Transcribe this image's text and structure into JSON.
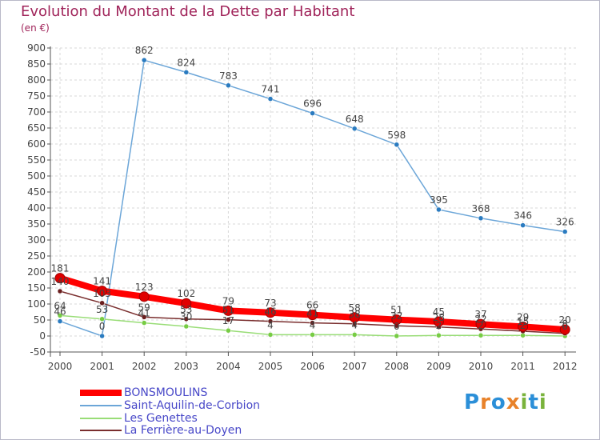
{
  "title": "Evolution du Montant de la Dette par Habitant",
  "subtitle": "(en €)",
  "logo": {
    "text": "Proxiti",
    "letters": [
      "P",
      "r",
      "o",
      "x",
      "i",
      "t",
      "i"
    ],
    "colors": [
      "#2b8fd8",
      "#e8822a",
      "#2b8fd8",
      "#e8822a",
      "#7ab33c",
      "#2b8fd8",
      "#7ab33c"
    ]
  },
  "chart_data": {
    "type": "line",
    "title": "Evolution du Montant de la Dette par Habitant",
    "ylabel": "(en €)",
    "xlabel": "",
    "ylim": [
      -50,
      900
    ],
    "yticks": [
      -50,
      0,
      50,
      100,
      150,
      200,
      250,
      300,
      350,
      400,
      450,
      500,
      550,
      600,
      650,
      700,
      750,
      800,
      850,
      900
    ],
    "x": [
      "2000",
      "2001",
      "2002",
      "2003",
      "2004",
      "2005",
      "2006",
      "2007",
      "2008",
      "2009",
      "2010",
      "2011",
      "2012"
    ],
    "series": [
      {
        "name": "BONSMOULINS",
        "color": "#ff0000",
        "marker": "#e00000",
        "values": [
          181,
          141,
          123,
          102,
          79,
          73,
          66,
          58,
          51,
          45,
          37,
          29,
          20
        ],
        "labels": [
          "181",
          "141",
          "123",
          "102",
          "79",
          "73",
          "66",
          "58",
          "51",
          "45",
          "37",
          "29",
          "20"
        ]
      },
      {
        "name": "Saint-Aquilin-de-Corbion",
        "color": "#6ca6d8",
        "marker": "#2a7bc0",
        "values": [
          46,
          0,
          862,
          824,
          783,
          741,
          696,
          648,
          598,
          395,
          368,
          346,
          326
        ],
        "labels": [
          "46",
          "0",
          "862",
          "824",
          "783",
          "741",
          "696",
          "648",
          "598",
          "395",
          "368",
          "346",
          "326"
        ]
      },
      {
        "name": "Les Genettes",
        "color": "#99dd77",
        "marker": "#77cc44",
        "values": [
          64,
          53,
          41,
          30,
          17,
          4,
          4,
          4,
          0,
          2,
          2,
          2,
          0
        ],
        "labels": [
          "64",
          "53",
          "41",
          "30",
          "17",
          "4",
          "4",
          "4",
          "0",
          "2",
          "2",
          "2",
          "0"
        ]
      },
      {
        "name": "La Ferrière-au-Doyen",
        "color": "#7a2e2e",
        "marker": "#6a1e1e",
        "values": [
          140,
          103,
          59,
          53,
          51,
          46,
          41,
          38,
          32,
          28,
          22,
          15,
          8
        ],
        "labels": [
          "140",
          "103",
          "59",
          "53",
          "51",
          "46",
          "41",
          "38",
          "32",
          "28",
          "22",
          "15",
          "8"
        ]
      }
    ]
  }
}
